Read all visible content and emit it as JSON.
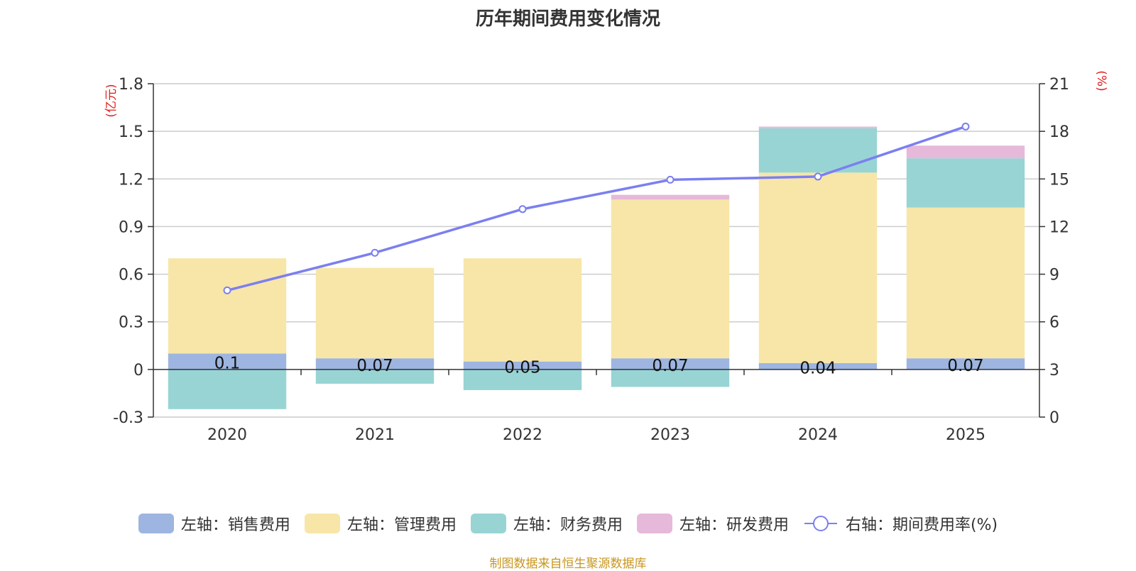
{
  "chart_data": {
    "type": "bar",
    "title": "历年期间费用变化情况",
    "categories": [
      "2020",
      "2021",
      "2022",
      "2023",
      "2024",
      "2025"
    ],
    "left_axis": {
      "unit_label": "(亿元)",
      "ylim": [
        -0.3,
        1.8
      ],
      "ticks": [
        "-0.3",
        "0",
        "0.3",
        "0.6",
        "0.9",
        "1.2",
        "1.5",
        "1.8"
      ]
    },
    "right_axis": {
      "unit_label": "(%)",
      "ylim": [
        0,
        21
      ],
      "ticks": [
        "0",
        "3",
        "6",
        "9",
        "12",
        "15",
        "18",
        "21"
      ]
    },
    "series": [
      {
        "name": "左轴：销售费用",
        "type": "bar",
        "color": "#9db5e0",
        "values": [
          0.1,
          0.07,
          0.05,
          0.07,
          0.04,
          0.07
        ],
        "labels": [
          "0.1",
          "0.07",
          "0.05",
          "0.07",
          "0.04",
          "0.07"
        ]
      },
      {
        "name": "左轴：管理费用",
        "type": "bar",
        "color": "#f7e6a8",
        "values": [
          0.6,
          0.57,
          0.65,
          1.0,
          1.2,
          0.95
        ]
      },
      {
        "name": "左轴：财务费用",
        "type": "bar",
        "color": "#98d4d4",
        "values": [
          -0.25,
          -0.09,
          -0.13,
          -0.11,
          0.28,
          0.31
        ]
      },
      {
        "name": "左轴：研发费用",
        "type": "bar",
        "color": "#e6b9da",
        "values": [
          0,
          0,
          0,
          0.03,
          0.01,
          0.08
        ]
      },
      {
        "name": "右轴：期间费用率(%)",
        "type": "line",
        "axis": "right",
        "color": "#7b7ff0",
        "values": [
          7.98,
          10.35,
          13.1,
          14.95,
          15.15,
          18.3
        ]
      }
    ],
    "source": "制图数据来自恒生聚源数据库"
  }
}
